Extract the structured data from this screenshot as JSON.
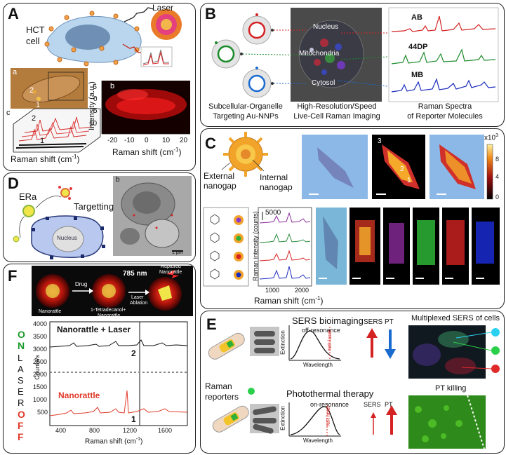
{
  "panelA": {
    "letter": "A",
    "cell_label_1": "HCT",
    "cell_label_2": "cell",
    "laser": "Laser",
    "sub_a": "a",
    "sub_b": "b",
    "sub_c": "c",
    "marker_2": "2",
    "marker_1": "1",
    "trace_2": "2",
    "trace_1": "1",
    "xaxis": "Raman shift (cm",
    "yaxis": "Intensity (a.u.)",
    "yticks": [
      "-5",
      "0",
      "5",
      "10"
    ],
    "xticks": [
      "-20",
      "-10",
      "0",
      "10",
      "20"
    ]
  },
  "panelB": {
    "letter": "B",
    "nucleus": "Nucleus",
    "mito": "Mitochondria",
    "cytosol": "Cytosol",
    "cap1_1": "Subcellular-Organelle",
    "cap1_2": "Targeting Au-NNPs",
    "cap2_1": "High-Resolution/Speed",
    "cap2_2": "Live-Cell Raman Imaging",
    "cap3_1": "Raman Spectra",
    "cap3_2": "of Reporter Molecules",
    "spec": [
      "AB",
      "44DP",
      "MB"
    ],
    "colors": {
      "AB": "#d62020",
      "44DP": "#1a8a2a",
      "MB": "#1a2bbd"
    }
  },
  "panelC": {
    "letter": "C",
    "external": "External",
    "nanogap1": "nanogap",
    "internal": "Internal",
    "nanogap2": "nanogap",
    "scale_label": "x10",
    "scale_exp": "3",
    "colorbar_ticks": [
      "8",
      "4",
      "0"
    ],
    "mark_3": "3",
    "mark_2": "2",
    "mark_1": "1",
    "spectra_scale": "5000",
    "yaxis": "Raman intensity (counts)",
    "xaxis": "Raman shift (cm",
    "xticks": [
      "1000",
      "2000"
    ]
  },
  "panelD": {
    "letter": "D",
    "era": "ERa",
    "targetting": "Targetting",
    "nucleus": "Nucleus",
    "em_label": "b",
    "em_scale": "1 μm"
  },
  "panelE": {
    "letter": "E",
    "sers_title": "SERS bioimaging",
    "off_res": "off-resonance",
    "pt_title": "Photothermal therapy",
    "on_res": "on-resonance",
    "raman_1": "Raman",
    "raman_2": "reporters",
    "extinction": "Extinction",
    "wavelength": "Wavelength",
    "nir": "NIR laser",
    "sers": "SERS",
    "pt": "PT",
    "multiplexed": "Multiplexed SERS of cells",
    "pt_killing": "PT killing"
  },
  "panelF": {
    "letter": "F",
    "nanorattle": "Nanorattle",
    "drug": "Drug",
    "tetradecanol_1": "1-Tetradecanol+",
    "tetradecanol_2": "Nanorattle",
    "laser_1": "Laser",
    "laser_2": "Ablation",
    "wavelength": "785 nm",
    "ruptured_1": "Ruptured",
    "ruptured_2": "Nanorattle",
    "on_letters": [
      "O",
      "N"
    ],
    "laser_letters": [
      "L",
      "A",
      "S",
      "E",
      "R"
    ],
    "off_letters": [
      "O",
      "F",
      "F"
    ],
    "trace_top": "Nanorattle + Laser",
    "trace_bottom": "Nanorattle",
    "num_2": "2",
    "num_1": "1",
    "yaxis": "Counts/s",
    "xaxis": "Raman shift (cm",
    "yticks": [
      "4000",
      "3500",
      "3000",
      "2500",
      "2000",
      "1500",
      "1000",
      "500"
    ],
    "xticks": [
      "400",
      "800",
      "1200",
      "1600"
    ]
  }
}
